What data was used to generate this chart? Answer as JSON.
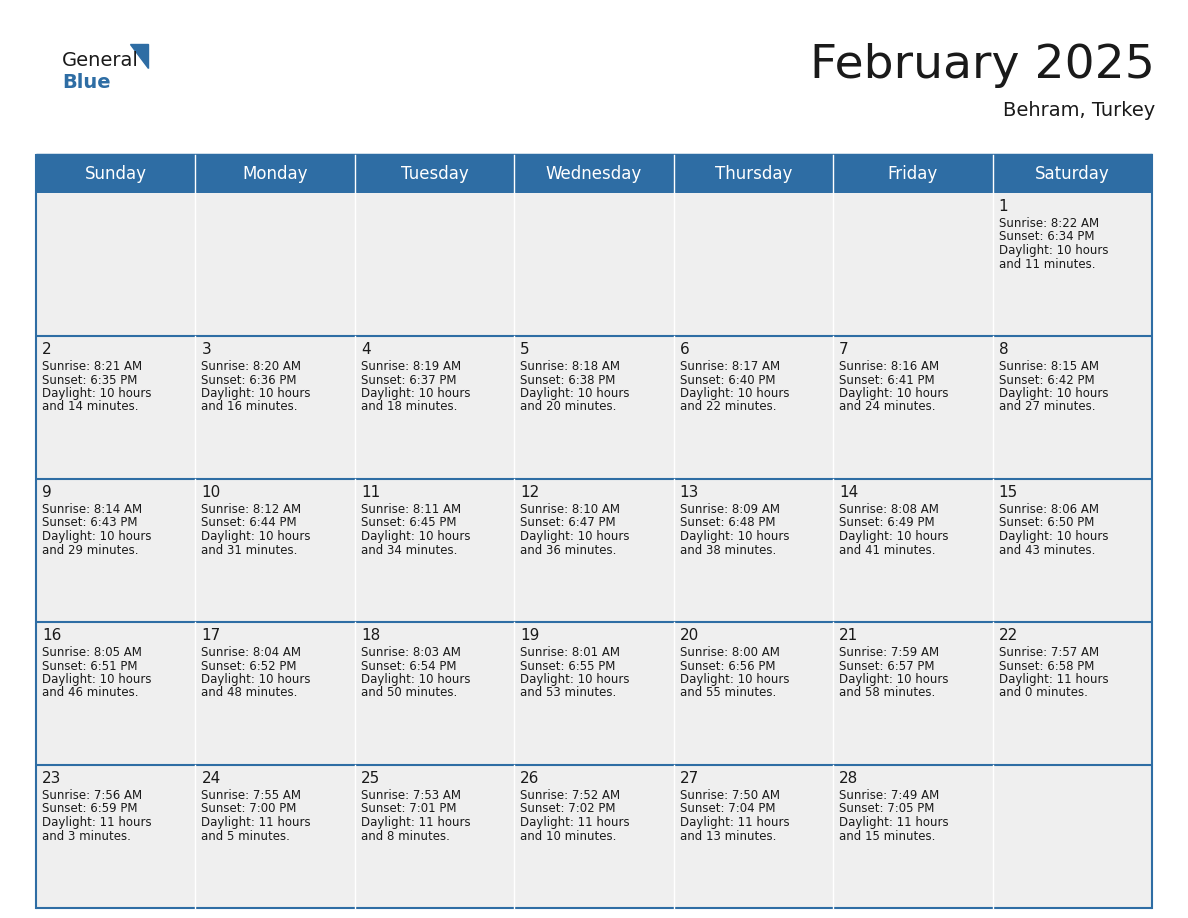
{
  "title": "February 2025",
  "subtitle": "Behram, Turkey",
  "header_bg_color": "#2E6DA4",
  "header_text_color": "#FFFFFF",
  "cell_bg_color": "#EFEFEF",
  "border_color": "#2E6DA4",
  "text_color": "#1a1a1a",
  "day_headers": [
    "Sunday",
    "Monday",
    "Tuesday",
    "Wednesday",
    "Thursday",
    "Friday",
    "Saturday"
  ],
  "title_fontsize": 34,
  "subtitle_fontsize": 14,
  "header_fontsize": 12,
  "day_num_fontsize": 11,
  "info_fontsize": 8.5,
  "calendar_data": [
    [
      null,
      null,
      null,
      null,
      null,
      null,
      {
        "day": 1,
        "sunrise": "8:22 AM",
        "sunset": "6:34 PM",
        "daylight_h": "10 hours",
        "daylight_m": "and 11 minutes."
      }
    ],
    [
      {
        "day": 2,
        "sunrise": "8:21 AM",
        "sunset": "6:35 PM",
        "daylight_h": "10 hours",
        "daylight_m": "and 14 minutes."
      },
      {
        "day": 3,
        "sunrise": "8:20 AM",
        "sunset": "6:36 PM",
        "daylight_h": "10 hours",
        "daylight_m": "and 16 minutes."
      },
      {
        "day": 4,
        "sunrise": "8:19 AM",
        "sunset": "6:37 PM",
        "daylight_h": "10 hours",
        "daylight_m": "and 18 minutes."
      },
      {
        "day": 5,
        "sunrise": "8:18 AM",
        "sunset": "6:38 PM",
        "daylight_h": "10 hours",
        "daylight_m": "and 20 minutes."
      },
      {
        "day": 6,
        "sunrise": "8:17 AM",
        "sunset": "6:40 PM",
        "daylight_h": "10 hours",
        "daylight_m": "and 22 minutes."
      },
      {
        "day": 7,
        "sunrise": "8:16 AM",
        "sunset": "6:41 PM",
        "daylight_h": "10 hours",
        "daylight_m": "and 24 minutes."
      },
      {
        "day": 8,
        "sunrise": "8:15 AM",
        "sunset": "6:42 PM",
        "daylight_h": "10 hours",
        "daylight_m": "and 27 minutes."
      }
    ],
    [
      {
        "day": 9,
        "sunrise": "8:14 AM",
        "sunset": "6:43 PM",
        "daylight_h": "10 hours",
        "daylight_m": "and 29 minutes."
      },
      {
        "day": 10,
        "sunrise": "8:12 AM",
        "sunset": "6:44 PM",
        "daylight_h": "10 hours",
        "daylight_m": "and 31 minutes."
      },
      {
        "day": 11,
        "sunrise": "8:11 AM",
        "sunset": "6:45 PM",
        "daylight_h": "10 hours",
        "daylight_m": "and 34 minutes."
      },
      {
        "day": 12,
        "sunrise": "8:10 AM",
        "sunset": "6:47 PM",
        "daylight_h": "10 hours",
        "daylight_m": "and 36 minutes."
      },
      {
        "day": 13,
        "sunrise": "8:09 AM",
        "sunset": "6:48 PM",
        "daylight_h": "10 hours",
        "daylight_m": "and 38 minutes."
      },
      {
        "day": 14,
        "sunrise": "8:08 AM",
        "sunset": "6:49 PM",
        "daylight_h": "10 hours",
        "daylight_m": "and 41 minutes."
      },
      {
        "day": 15,
        "sunrise": "8:06 AM",
        "sunset": "6:50 PM",
        "daylight_h": "10 hours",
        "daylight_m": "and 43 minutes."
      }
    ],
    [
      {
        "day": 16,
        "sunrise": "8:05 AM",
        "sunset": "6:51 PM",
        "daylight_h": "10 hours",
        "daylight_m": "and 46 minutes."
      },
      {
        "day": 17,
        "sunrise": "8:04 AM",
        "sunset": "6:52 PM",
        "daylight_h": "10 hours",
        "daylight_m": "and 48 minutes."
      },
      {
        "day": 18,
        "sunrise": "8:03 AM",
        "sunset": "6:54 PM",
        "daylight_h": "10 hours",
        "daylight_m": "and 50 minutes."
      },
      {
        "day": 19,
        "sunrise": "8:01 AM",
        "sunset": "6:55 PM",
        "daylight_h": "10 hours",
        "daylight_m": "and 53 minutes."
      },
      {
        "day": 20,
        "sunrise": "8:00 AM",
        "sunset": "6:56 PM",
        "daylight_h": "10 hours",
        "daylight_m": "and 55 minutes."
      },
      {
        "day": 21,
        "sunrise": "7:59 AM",
        "sunset": "6:57 PM",
        "daylight_h": "10 hours",
        "daylight_m": "and 58 minutes."
      },
      {
        "day": 22,
        "sunrise": "7:57 AM",
        "sunset": "6:58 PM",
        "daylight_h": "11 hours",
        "daylight_m": "and 0 minutes."
      }
    ],
    [
      {
        "day": 23,
        "sunrise": "7:56 AM",
        "sunset": "6:59 PM",
        "daylight_h": "11 hours",
        "daylight_m": "and 3 minutes."
      },
      {
        "day": 24,
        "sunrise": "7:55 AM",
        "sunset": "7:00 PM",
        "daylight_h": "11 hours",
        "daylight_m": "and 5 minutes."
      },
      {
        "day": 25,
        "sunrise": "7:53 AM",
        "sunset": "7:01 PM",
        "daylight_h": "11 hours",
        "daylight_m": "and 8 minutes."
      },
      {
        "day": 26,
        "sunrise": "7:52 AM",
        "sunset": "7:02 PM",
        "daylight_h": "11 hours",
        "daylight_m": "and 10 minutes."
      },
      {
        "day": 27,
        "sunrise": "7:50 AM",
        "sunset": "7:04 PM",
        "daylight_h": "11 hours",
        "daylight_m": "and 13 minutes."
      },
      {
        "day": 28,
        "sunrise": "7:49 AM",
        "sunset": "7:05 PM",
        "daylight_h": "11 hours",
        "daylight_m": "and 15 minutes."
      },
      null
    ]
  ]
}
